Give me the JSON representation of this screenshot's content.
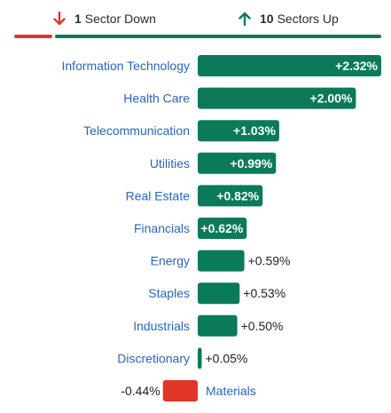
{
  "summary": {
    "down_count": "1",
    "down_label": "Sector Down",
    "up_count": "10",
    "up_label": "Sectors Up",
    "down_icon": "arrow-down-icon",
    "up_icon": "arrow-up-icon"
  },
  "breadth": {
    "down": 1,
    "up": 10
  },
  "colors": {
    "up": "#0a7a5a",
    "down": "#e2352a",
    "label": "#2a66b8",
    "value_text": "#222222",
    "summary_text": "#2b2b2b"
  },
  "chart_data": {
    "type": "bar",
    "orientation": "horizontal",
    "categories": [
      "Information Technology",
      "Health Care",
      "Telecommunication",
      "Utilities",
      "Real Estate",
      "Financials",
      "Energy",
      "Staples",
      "Industrials",
      "Discretionary",
      "Materials"
    ],
    "values": [
      2.32,
      2.0,
      1.03,
      0.99,
      0.82,
      0.62,
      0.59,
      0.53,
      0.5,
      0.05,
      -0.44
    ],
    "value_labels": [
      "+2.32%",
      "+2.00%",
      "+1.03%",
      "+0.99%",
      "+0.82%",
      "+0.62%",
      "+0.59%",
      "+0.53%",
      "+0.50%",
      "+0.05%",
      "-0.44%"
    ],
    "units": "%",
    "title": "",
    "xlabel": "",
    "ylabel": "",
    "grid": false,
    "legend": "none"
  }
}
